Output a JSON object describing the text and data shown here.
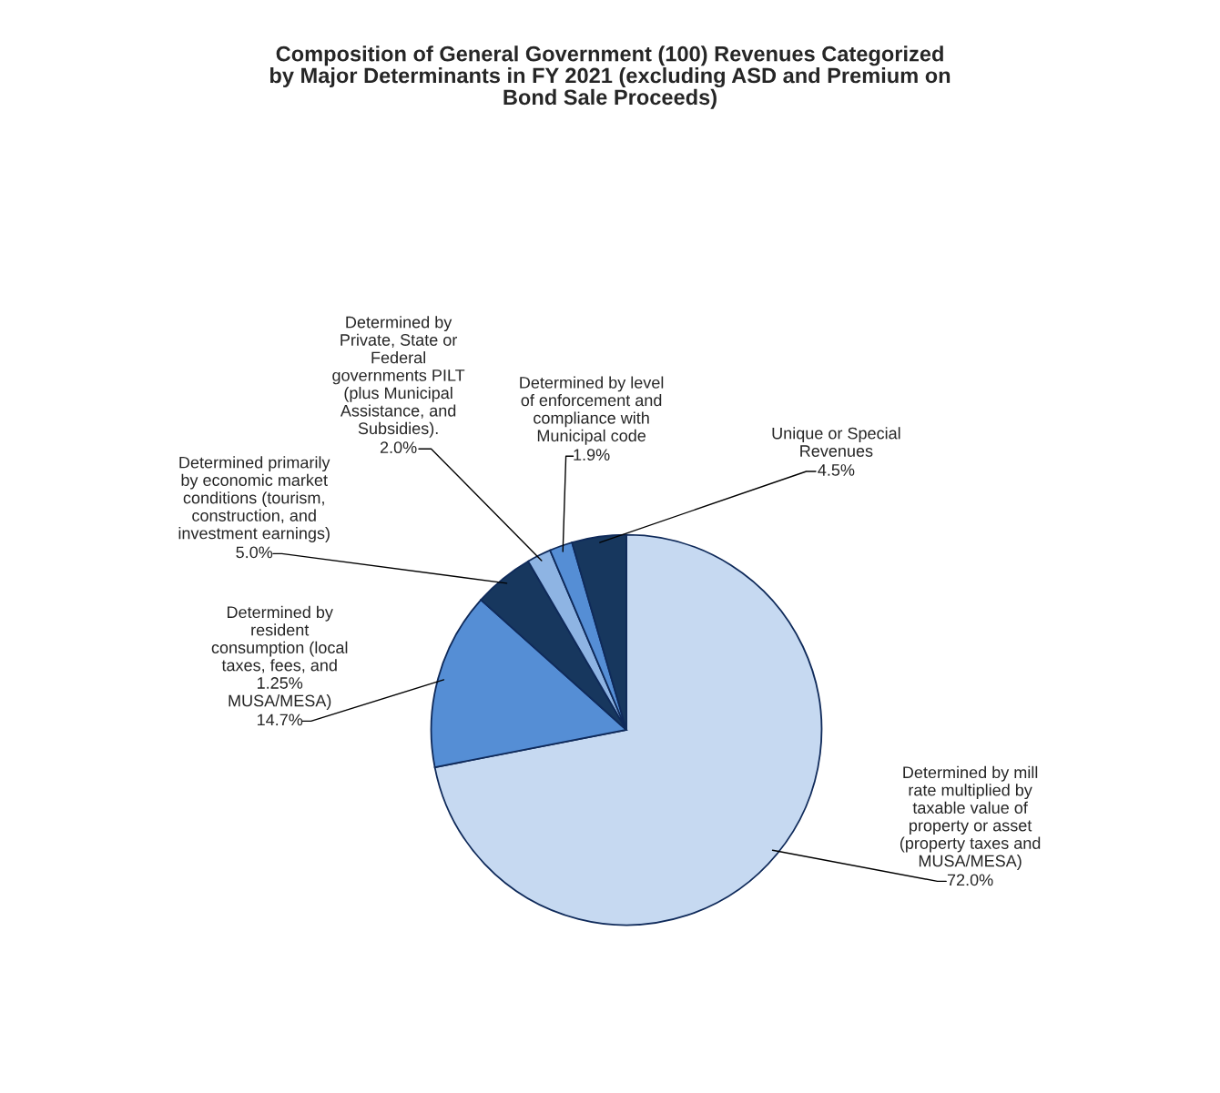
{
  "chart_data": {
    "type": "pie",
    "title": "Composition of General Government (100) Revenues Categorized\nby Major Determinants in FY 2021 (excluding ASD and Premium on\nBond Sale Proceeds)",
    "categories": [
      "Determined by mill\nrate multiplied by\ntaxable value of\nproperty or asset\n(property taxes and\nMUSA/MESA)",
      "Determined by\nresident\nconsumption (local\ntaxes, fees, and\n1.25%\nMUSA/MESA)",
      "Determined primarily\nby economic market\nconditions (tourism,\nconstruction, and\ninvestment earnings)",
      "Determined by\nPrivate, State or\nFederal\ngovernments PILT\n(plus Municipal\nAssistance, and\nSubsidies).",
      "Determined by level\nof enforcement and\ncompliance with\nMunicipal code",
      "Unique or Special\nRevenues"
    ],
    "values": [
      72.0,
      14.7,
      5.0,
      2.0,
      1.9,
      4.5
    ],
    "value_labels": [
      "72.0%",
      "14.7%",
      "5.0%",
      "2.0%",
      "1.9%",
      "4.5%"
    ],
    "colors": [
      "#c6d9f1",
      "#558ed5",
      "#17375e",
      "#8eb4e3",
      "#558ed5",
      "#17375e"
    ],
    "legend": false
  }
}
